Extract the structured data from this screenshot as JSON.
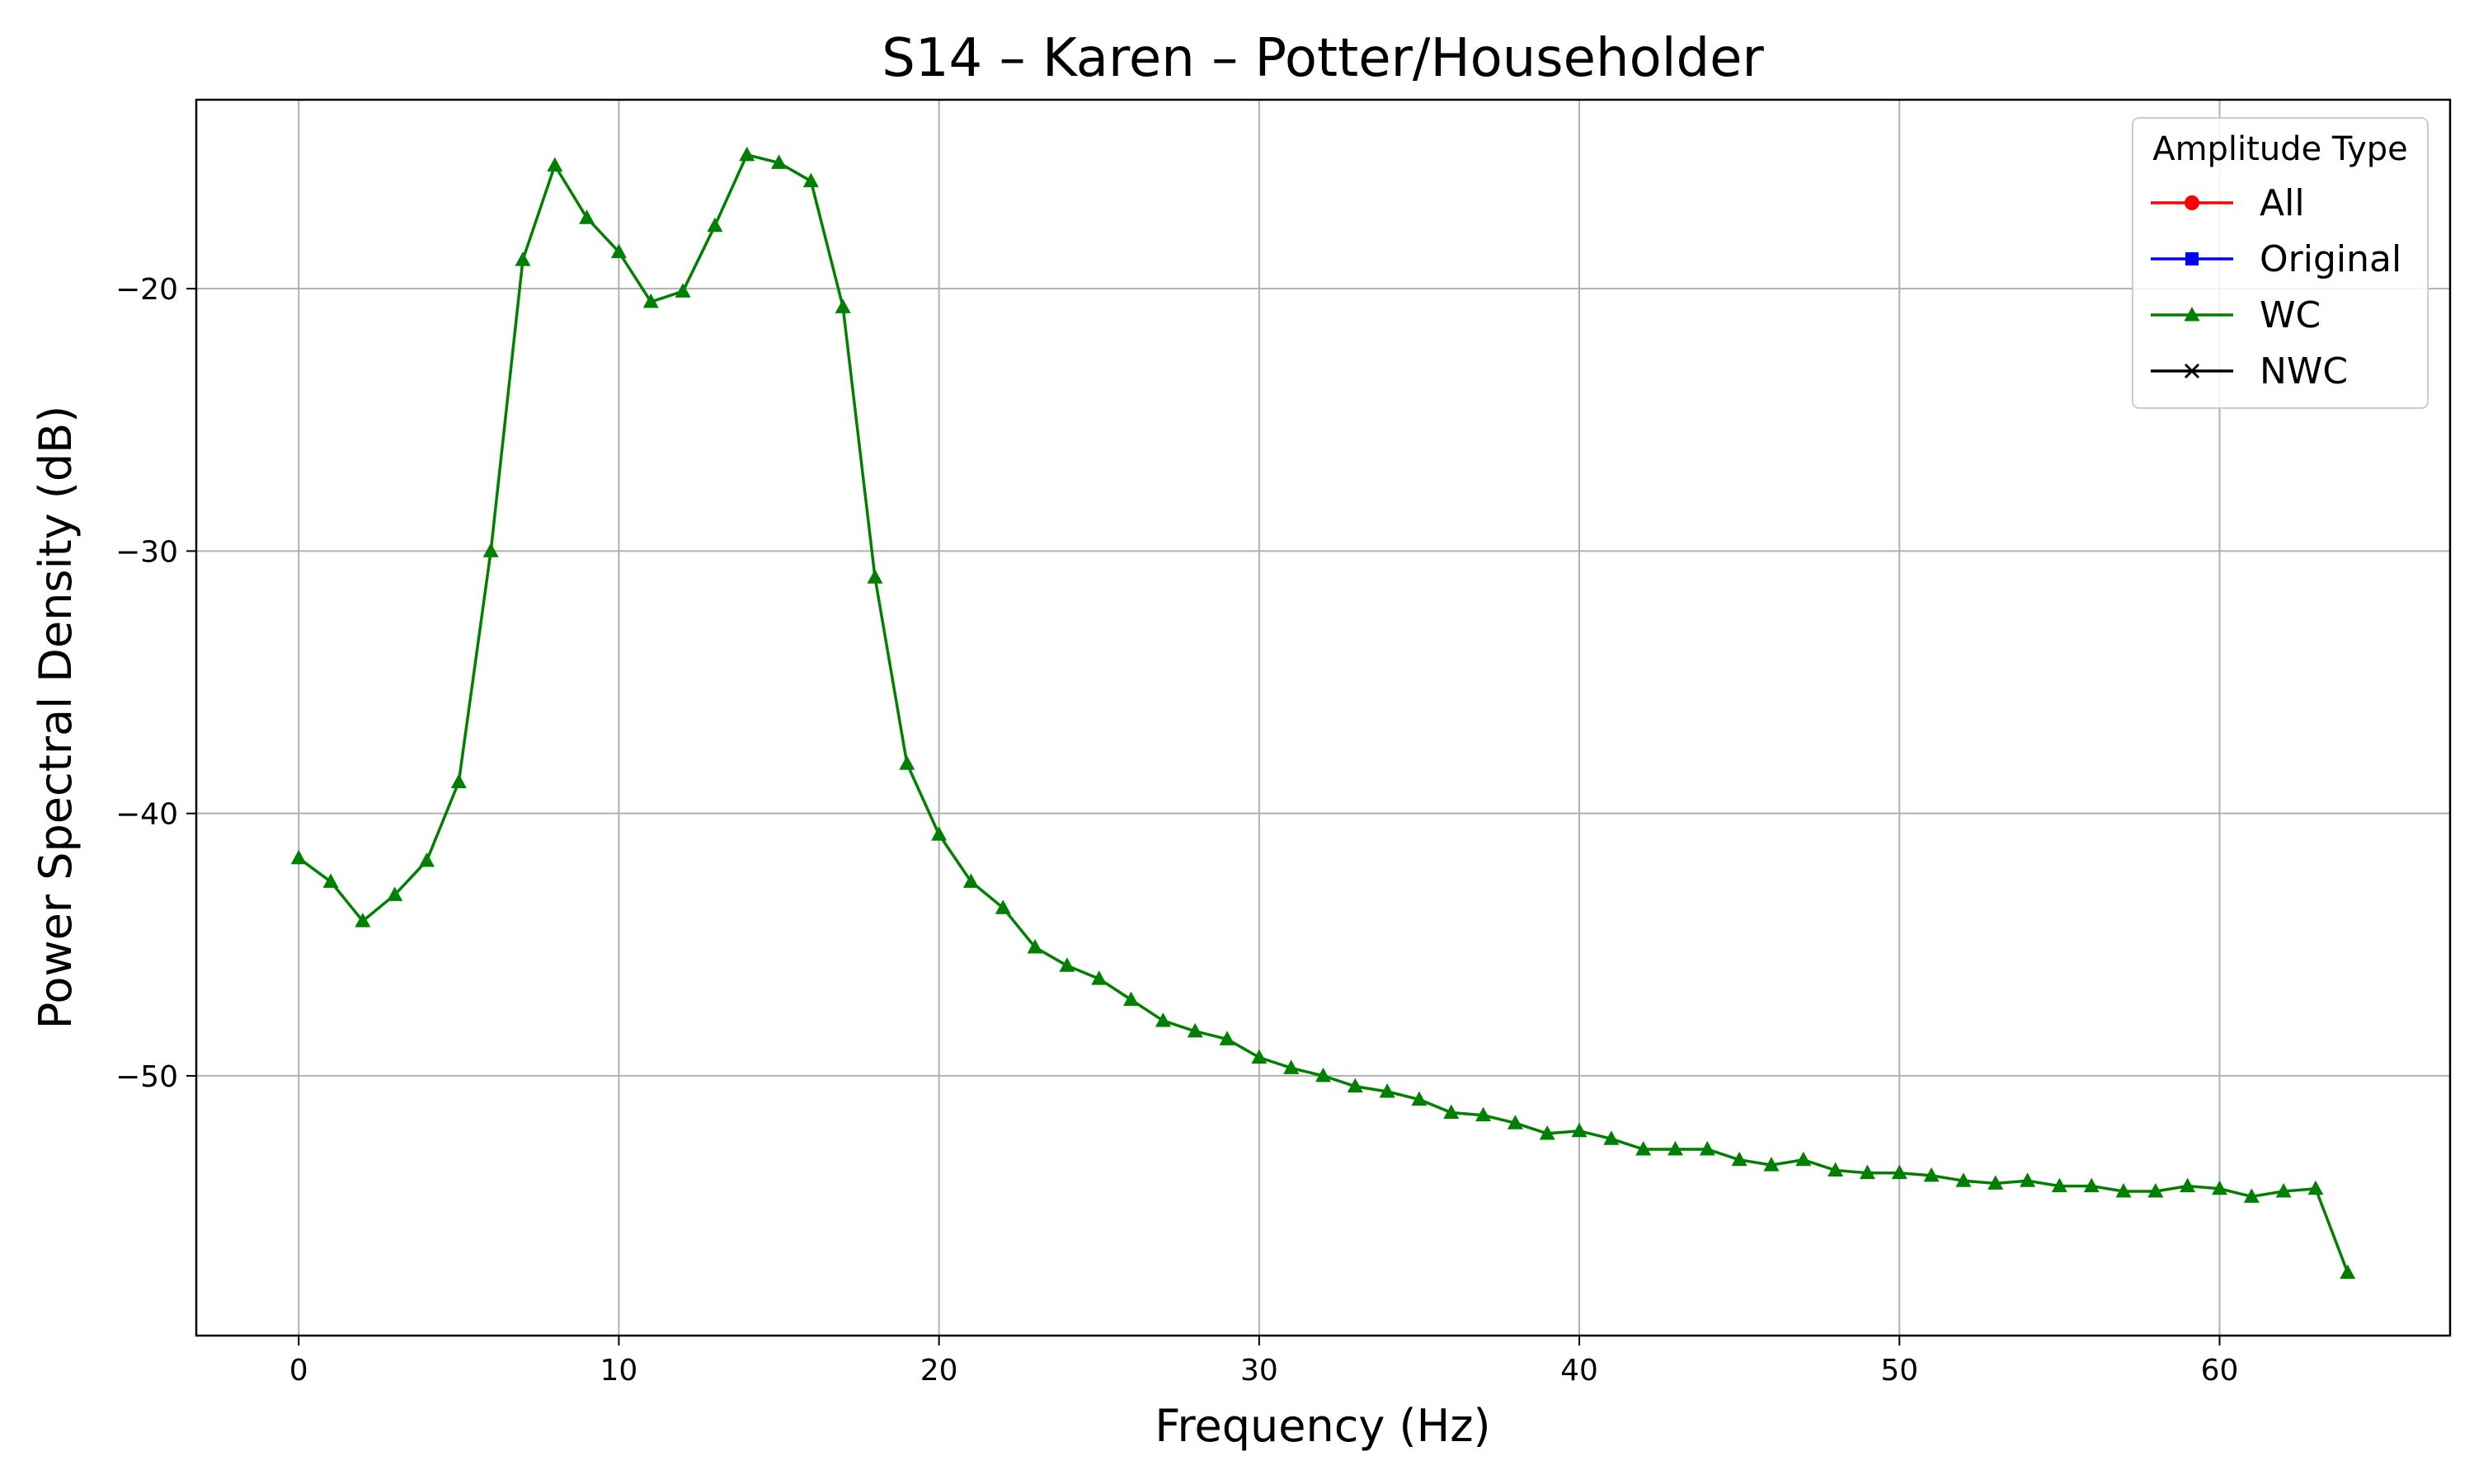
{
  "chart_data": {
    "type": "line",
    "title": "S14 – Karen – Potter/Householder",
    "xlabel": "Frequency (Hz)",
    "ylabel": "Power Spectral Density (dB)",
    "xlim": [
      -3.2,
      67.2
    ],
    "ylim": [
      -59.9,
      -12.8
    ],
    "xticks": [
      0,
      10,
      20,
      30,
      40,
      50,
      60
    ],
    "yticks": [
      -20,
      -30,
      -40,
      -50
    ],
    "xtick_labels": [
      "0",
      "10",
      "20",
      "30",
      "40",
      "50",
      "60"
    ],
    "ytick_labels": [
      "−20",
      "−30",
      "−40",
      "−50"
    ],
    "grid": true,
    "legend": {
      "title": "Amplitude Type",
      "position": "top-right",
      "entries": [
        {
          "label": "All",
          "color": "#ff0000",
          "marker": "circle"
        },
        {
          "label": "Original",
          "color": "#0000ff",
          "marker": "square"
        },
        {
          "label": "WC",
          "color": "#008000",
          "marker": "triangle"
        },
        {
          "label": "NWC",
          "color": "#000000",
          "marker": "x"
        }
      ]
    },
    "series": [
      {
        "name": "WC",
        "color": "#008000",
        "marker": "triangle",
        "x": [
          0,
          1,
          2,
          3,
          4,
          5,
          6,
          7,
          8,
          9,
          10,
          11,
          12,
          13,
          14,
          15,
          16,
          17,
          18,
          19,
          20,
          21,
          22,
          23,
          24,
          25,
          26,
          27,
          28,
          29,
          30,
          31,
          32,
          33,
          34,
          35,
          36,
          37,
          38,
          39,
          40,
          41,
          42,
          43,
          44,
          45,
          46,
          47,
          48,
          49,
          50,
          51,
          52,
          53,
          54,
          55,
          56,
          57,
          58,
          59,
          60,
          61,
          62,
          63,
          64
        ],
        "y": [
          -41.7,
          -42.6,
          -44.1,
          -43.1,
          -41.8,
          -38.8,
          -30.0,
          -18.9,
          -15.3,
          -17.3,
          -18.6,
          -20.5,
          -20.1,
          -17.6,
          -14.9,
          -15.2,
          -15.9,
          -20.7,
          -31.0,
          -38.1,
          -40.8,
          -42.6,
          -43.6,
          -45.1,
          -45.8,
          -46.3,
          -47.1,
          -47.9,
          -48.3,
          -48.6,
          -49.3,
          -49.7,
          -50.0,
          -50.4,
          -50.6,
          -50.9,
          -51.4,
          -51.5,
          -51.8,
          -52.2,
          -52.1,
          -52.4,
          -52.8,
          -52.8,
          -52.8,
          -53.2,
          -53.4,
          -53.2,
          -53.6,
          -53.7,
          -53.7,
          -53.8,
          -54.0,
          -54.1,
          -54.0,
          -54.2,
          -54.2,
          -54.4,
          -54.4,
          -54.2,
          -54.3,
          -54.6,
          -54.4,
          -54.3,
          -57.5
        ]
      }
    ]
  }
}
